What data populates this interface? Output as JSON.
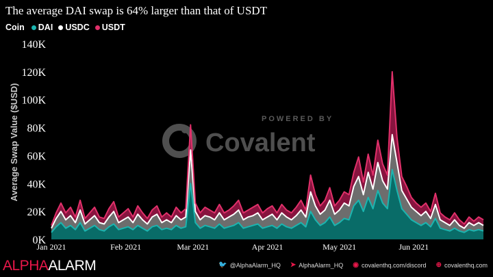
{
  "title": "The average DAI swap is 64% larger than that of USDT",
  "legend": {
    "title": "Coin",
    "items": [
      {
        "label": "DAI",
        "color": "#1bb5b0"
      },
      {
        "label": "USDC",
        "color": "#ffffff"
      },
      {
        "label": "USDT",
        "color": "#e0306a"
      }
    ]
  },
  "watermark": {
    "powered_by": "POWERED BY",
    "brand": "Covalent"
  },
  "footer": {
    "brand_part1": "ALPHA",
    "brand_part2": "ALARM",
    "links": [
      {
        "icon": "twitter-icon",
        "glyph": "🐦",
        "label": "@AlphaAlarm_HQ"
      },
      {
        "icon": "telegram-icon",
        "glyph": "➤",
        "label": "AlphaAlarm_HQ"
      },
      {
        "icon": "discord-icon",
        "glyph": "◉",
        "label": "covalenthq.com/discord"
      },
      {
        "icon": "globe-icon",
        "glyph": "⊕",
        "label": "covalenthq.com"
      }
    ]
  },
  "chart_data": {
    "type": "area",
    "stacked": true,
    "ylabel": "Average Swap Value ($USD)",
    "ylim": [
      0,
      140000
    ],
    "yticks": [
      0,
      20000,
      40000,
      60000,
      80000,
      100000,
      120000,
      140000
    ],
    "ytick_labels": [
      "0K",
      "20K",
      "40K",
      "60K",
      "80K",
      "100K",
      "120K",
      "140K"
    ],
    "xlim": [
      "2021-01-01",
      "2021-06-30"
    ],
    "xticks": [
      "2021-01-01",
      "2021-02-01",
      "2021-03-01",
      "2021-04-01",
      "2021-05-01",
      "2021-06-01"
    ],
    "xtick_labels": [
      "Jan 2021",
      "Feb 2021",
      "Mar 2021",
      "Apr 2021",
      "May 2021",
      "Jun 2021"
    ],
    "grid": false,
    "legend_position": "top-left",
    "x": [
      "2021-01-01",
      "2021-01-03",
      "2021-01-05",
      "2021-01-07",
      "2021-01-09",
      "2021-01-11",
      "2021-01-13",
      "2021-01-15",
      "2021-01-17",
      "2021-01-19",
      "2021-01-21",
      "2021-01-23",
      "2021-01-25",
      "2021-01-27",
      "2021-01-29",
      "2021-01-31",
      "2021-02-02",
      "2021-02-04",
      "2021-02-06",
      "2021-02-08",
      "2021-02-10",
      "2021-02-12",
      "2021-02-14",
      "2021-02-16",
      "2021-02-18",
      "2021-02-20",
      "2021-02-22",
      "2021-02-24",
      "2021-02-26",
      "2021-02-28",
      "2021-03-02",
      "2021-03-04",
      "2021-03-06",
      "2021-03-08",
      "2021-03-10",
      "2021-03-12",
      "2021-03-14",
      "2021-03-16",
      "2021-03-18",
      "2021-03-20",
      "2021-03-22",
      "2021-03-24",
      "2021-03-26",
      "2021-03-28",
      "2021-03-30",
      "2021-04-01",
      "2021-04-03",
      "2021-04-05",
      "2021-04-07",
      "2021-04-09",
      "2021-04-11",
      "2021-04-13",
      "2021-04-15",
      "2021-04-17",
      "2021-04-19",
      "2021-04-21",
      "2021-04-23",
      "2021-04-25",
      "2021-04-27",
      "2021-04-29",
      "2021-05-01",
      "2021-05-03",
      "2021-05-05",
      "2021-05-07",
      "2021-05-09",
      "2021-05-11",
      "2021-05-13",
      "2021-05-15",
      "2021-05-17",
      "2021-05-19",
      "2021-05-21",
      "2021-05-23",
      "2021-05-25",
      "2021-05-27",
      "2021-05-29",
      "2021-05-31",
      "2021-06-02",
      "2021-06-04",
      "2021-06-06",
      "2021-06-08",
      "2021-06-10",
      "2021-06-12",
      "2021-06-14",
      "2021-06-16",
      "2021-06-18",
      "2021-06-20",
      "2021-06-22",
      "2021-06-24",
      "2021-06-26",
      "2021-06-28",
      "2021-06-30"
    ],
    "series": [
      {
        "name": "DAI",
        "color": "#1bb5b0",
        "values": [
          5000,
          9000,
          12000,
          8000,
          10000,
          7000,
          12000,
          6000,
          8000,
          10000,
          7000,
          6000,
          9000,
          11000,
          7000,
          8000,
          9000,
          7000,
          10000,
          8000,
          6000,
          9000,
          10000,
          7000,
          8000,
          7000,
          10000,
          8000,
          9000,
          40000,
          12000,
          8000,
          10000,
          9000,
          8000,
          11000,
          8000,
          9000,
          10000,
          12000,
          8000,
          9000,
          10000,
          11000,
          8000,
          9000,
          10000,
          8000,
          11000,
          9000,
          8000,
          10000,
          12000,
          9000,
          20000,
          14000,
          10000,
          12000,
          16000,
          10000,
          12000,
          15000,
          14000,
          24000,
          28000,
          20000,
          30000,
          22000,
          35000,
          26000,
          22000,
          50000,
          35000,
          22000,
          18000,
          14000,
          12000,
          10000,
          12000,
          9000,
          15000,
          8000,
          7000,
          6000,
          8000,
          6000,
          5000,
          7000,
          6000,
          7000,
          6000
        ]
      },
      {
        "name": "USDC",
        "color": "#ffffff",
        "values": [
          3000,
          6000,
          8000,
          6000,
          7000,
          5000,
          9000,
          5000,
          6000,
          7000,
          5000,
          5000,
          7000,
          9000,
          5000,
          6000,
          7000,
          5000,
          8000,
          6000,
          5000,
          7000,
          8000,
          5000,
          6000,
          5000,
          7000,
          6000,
          7000,
          24000,
          8000,
          6000,
          7000,
          7000,
          6000,
          8000,
          6000,
          7000,
          8000,
          9000,
          6000,
          7000,
          7000,
          8000,
          6000,
          7000,
          8000,
          6000,
          8000,
          7000,
          6000,
          7000,
          9000,
          7000,
          14000,
          10000,
          8000,
          9000,
          12000,
          8000,
          9000,
          11000,
          10000,
          14000,
          17000,
          12000,
          18000,
          14000,
          20000,
          16000,
          14000,
          25000,
          20000,
          13000,
          11000,
          9000,
          8000,
          7000,
          8000,
          6000,
          10000,
          6000,
          5000,
          4000,
          6000,
          4000,
          3000,
          5000,
          4000,
          5000,
          4000
        ]
      },
      {
        "name": "USDT",
        "color": "#e0306a",
        "values": [
          2000,
          4000,
          6000,
          5000,
          6000,
          4000,
          7000,
          4000,
          5000,
          6000,
          4000,
          4000,
          6000,
          7000,
          4000,
          5000,
          6000,
          4000,
          6000,
          5000,
          4000,
          5000,
          6000,
          4000,
          5000,
          4000,
          6000,
          5000,
          6000,
          18000,
          6000,
          5000,
          6000,
          5000,
          5000,
          6000,
          5000,
          5000,
          6000,
          7000,
          5000,
          5000,
          6000,
          6000,
          5000,
          6000,
          6000,
          5000,
          6000,
          5000,
          5000,
          6000,
          7000,
          5000,
          12000,
          8000,
          6000,
          7000,
          9000,
          6000,
          7000,
          8000,
          8000,
          10000,
          14000,
          9000,
          13000,
          10000,
          16000,
          12000,
          10000,
          45000,
          18000,
          10000,
          9000,
          7000,
          6000,
          6000,
          6000,
          5000,
          8000,
          5000,
          4000,
          4000,
          5000,
          4000,
          3000,
          4000,
          3000,
          4000,
          4000
        ]
      }
    ]
  }
}
